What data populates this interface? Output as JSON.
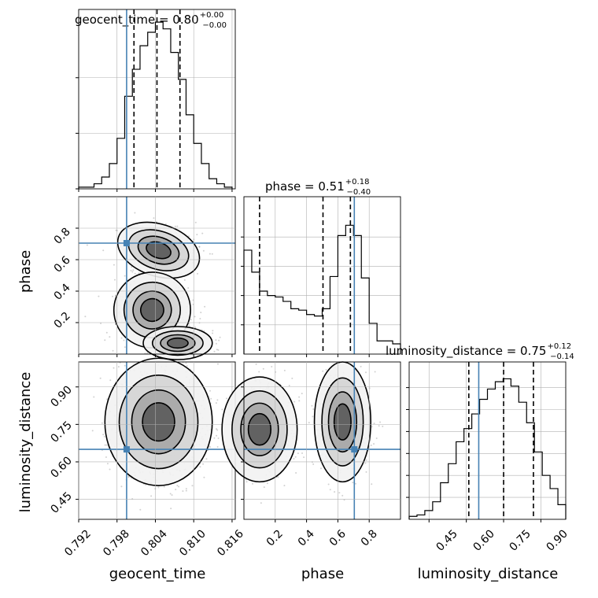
{
  "chart_data": {
    "type": "corner",
    "parameters": [
      "geocent_time",
      "phase",
      "luminosity_distance"
    ],
    "truths": {
      "geocent_time": 0.7995,
      "phase": 0.705,
      "luminosity_distance": 0.65
    },
    "colors": {
      "truth": "#4682b4",
      "hist": "#000000",
      "grid": "#b0b0b0",
      "points": "#999999"
    },
    "grid": true,
    "marginals": [
      {
        "param": "geocent_time",
        "title": {
          "main": "geocent_time = 0.80",
          "sup": "+0.00",
          "sub": "−0.00"
        },
        "xlim": [
          0.792,
          0.8165
        ],
        "quantiles": [
          0.80065,
          0.80425,
          0.80785
        ],
        "bin_edges": [
          0.792,
          0.7932,
          0.7944,
          0.7956,
          0.7968,
          0.798,
          0.7992,
          0.8004,
          0.8016,
          0.8028,
          0.804,
          0.8052,
          0.8064,
          0.8076,
          0.8088,
          0.81,
          0.8112,
          0.8124,
          0.8136,
          0.8148,
          0.816
        ],
        "counts": [
          0.01,
          0.01,
          0.03,
          0.07,
          0.15,
          0.3,
          0.55,
          0.71,
          0.85,
          0.93,
          0.99,
          0.95,
          0.81,
          0.65,
          0.44,
          0.27,
          0.15,
          0.06,
          0.03,
          0.01
        ],
        "yticks": [
          0.0,
          0.33,
          0.66
        ]
      },
      {
        "param": "phase",
        "title": {
          "main": "phase = 0.51",
          "sup": "+0.18",
          "sub": "−0.40"
        },
        "xlim": [
          0.0,
          1.0
        ],
        "quantiles": [
          0.1,
          0.505,
          0.68
        ],
        "bin_edges": [
          0.0,
          0.05,
          0.1,
          0.15,
          0.2,
          0.25,
          0.3,
          0.35,
          0.4,
          0.45,
          0.5,
          0.55,
          0.6,
          0.65,
          0.7,
          0.75,
          0.8,
          0.85,
          0.9,
          0.95,
          1.0
        ],
        "counts": [
          0.71,
          0.56,
          0.43,
          0.4,
          0.39,
          0.36,
          0.31,
          0.3,
          0.27,
          0.26,
          0.31,
          0.53,
          0.81,
          0.88,
          0.81,
          0.52,
          0.21,
          0.09,
          0.09,
          0.07
        ],
        "yticks": [
          0.2,
          0.4,
          0.6,
          0.8
        ]
      },
      {
        "param": "luminosity_distance",
        "title": {
          "main": "luminosity_distance = 0.75",
          "sup": "+0.12",
          "sub": "−0.14"
        },
        "xlim": [
          0.37,
          1.0
        ],
        "quantiles": [
          0.61,
          0.75,
          0.87
        ],
        "bin_edges": [
          0.37,
          0.4015,
          0.433,
          0.4645,
          0.496,
          0.5275,
          0.559,
          0.5905,
          0.622,
          0.6535,
          0.685,
          0.7165,
          0.748,
          0.7795,
          0.811,
          0.8425,
          0.874,
          0.9055,
          0.937,
          0.9685,
          1.0
        ],
        "counts": [
          0.02,
          0.03,
          0.06,
          0.12,
          0.25,
          0.38,
          0.53,
          0.62,
          0.72,
          0.82,
          0.89,
          0.94,
          0.96,
          0.91,
          0.8,
          0.66,
          0.46,
          0.3,
          0.21,
          0.1
        ],
        "yticks": [
          0.15,
          0.3,
          0.45,
          0.6,
          0.75,
          0.9
        ]
      }
    ],
    "pairs": [
      {
        "x": "geocent_time",
        "y": "phase",
        "xlim": [
          0.792,
          0.8165
        ],
        "ylim": [
          0.0,
          1.0
        ]
      },
      {
        "x": "geocent_time",
        "y": "luminosity_distance",
        "xlim": [
          0.792,
          0.8165
        ],
        "ylim": [
          0.37,
          1.0
        ]
      },
      {
        "x": "phase",
        "y": "luminosity_distance",
        "xlim": [
          0.0,
          1.0
        ],
        "ylim": [
          0.37,
          1.0
        ]
      }
    ],
    "axes": {
      "geocent_time": {
        "label": "geocent_time",
        "ticks": [
          "0.792",
          "0.798",
          "0.804",
          "0.810",
          "0.816"
        ],
        "tick_values": [
          0.792,
          0.798,
          0.804,
          0.81,
          0.816
        ]
      },
      "phase": {
        "label": "phase",
        "ticks": [
          "0.2",
          "0.4",
          "0.6",
          "0.8"
        ],
        "tick_values": [
          0.2,
          0.4,
          0.6,
          0.8
        ]
      },
      "luminosity_distance": {
        "label": "luminosity_distance",
        "ticks": [
          "0.45",
          "0.60",
          "0.75",
          "0.90"
        ],
        "tick_values": [
          0.45,
          0.6,
          0.75,
          0.9
        ]
      }
    }
  }
}
